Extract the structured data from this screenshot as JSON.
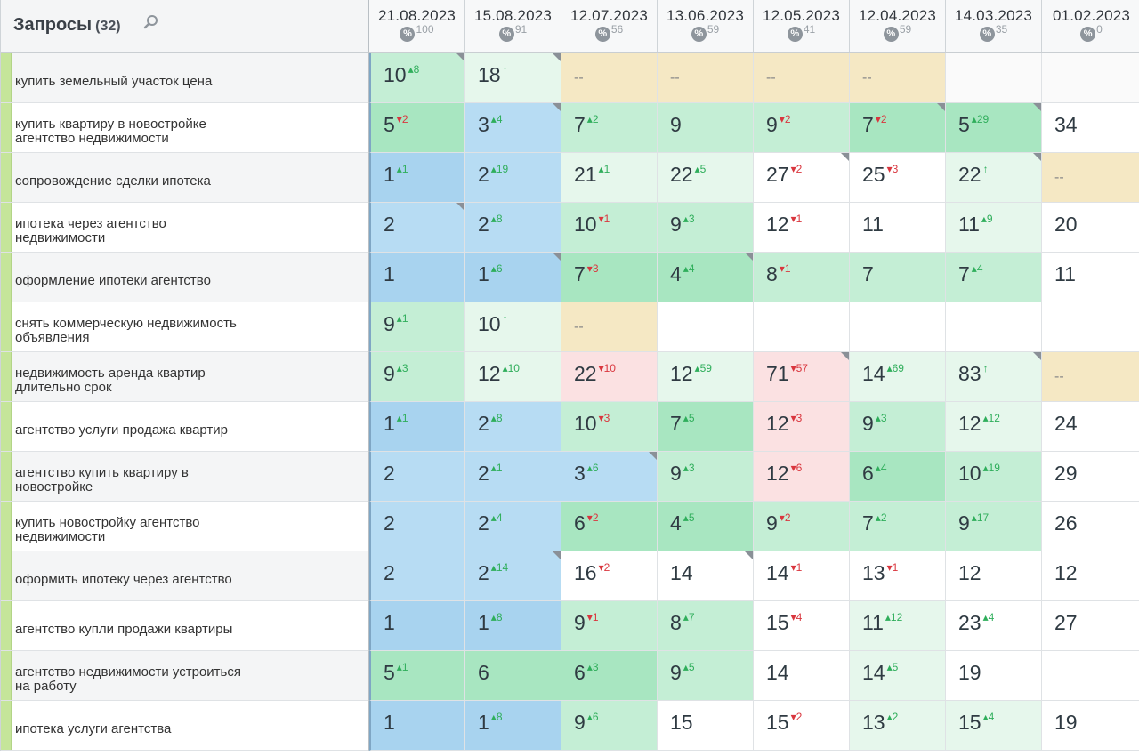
{
  "header": {
    "title": "Запросы",
    "count": "(32)",
    "columns": [
      {
        "date": "21.08.2023",
        "pct": "100"
      },
      {
        "date": "15.08.2023",
        "pct": "91"
      },
      {
        "date": "12.07.2023",
        "pct": "56"
      },
      {
        "date": "13.06.2023",
        "pct": "59"
      },
      {
        "date": "12.05.2023",
        "pct": "41"
      },
      {
        "date": "12.04.2023",
        "pct": "59"
      },
      {
        "date": "14.03.2023",
        "pct": "35"
      },
      {
        "date": "01.02.2023",
        "pct": "0"
      }
    ],
    "pct_symbol": "%"
  },
  "rows": [
    {
      "query": "купить земельный участок цена",
      "cells": [
        {
          "v": "10",
          "d": "8",
          "dir": "up",
          "c": "cgm",
          "k": true
        },
        {
          "v": "18",
          "d": "↑",
          "dir": "up",
          "c": "cgl",
          "k": true
        },
        {
          "v": "--",
          "c": "cy"
        },
        {
          "v": "--",
          "c": "cy"
        },
        {
          "v": "--",
          "c": "cy"
        },
        {
          "v": "--",
          "c": "cy"
        },
        {
          "v": "",
          "c": "cwg"
        },
        {
          "v": "",
          "c": "cwg"
        }
      ]
    },
    {
      "query": "купить квартиру в новостройке агентство недвижимости",
      "cells": [
        {
          "v": "5",
          "d": "2",
          "dir": "down",
          "c": "cg"
        },
        {
          "v": "3",
          "d": "4",
          "dir": "up",
          "c": "cb",
          "k": true
        },
        {
          "v": "7",
          "d": "2",
          "dir": "up",
          "c": "cgm"
        },
        {
          "v": "9",
          "c": "cgm"
        },
        {
          "v": "9",
          "d": "2",
          "dir": "down",
          "c": "cgm"
        },
        {
          "v": "7",
          "d": "2",
          "dir": "down",
          "c": "cg",
          "k": true
        },
        {
          "v": "5",
          "d": "29",
          "dir": "up",
          "c": "cg",
          "k": true
        },
        {
          "v": "34",
          "c": "cw"
        }
      ]
    },
    {
      "query": "сопровождение сделки ипотека",
      "cells": [
        {
          "v": "1",
          "d": "1",
          "dir": "up",
          "c": "cbd"
        },
        {
          "v": "2",
          "d": "19",
          "dir": "up",
          "c": "cb"
        },
        {
          "v": "21",
          "d": "1",
          "dir": "up",
          "c": "cgl"
        },
        {
          "v": "22",
          "d": "5",
          "dir": "up",
          "c": "cgl"
        },
        {
          "v": "27",
          "d": "2",
          "dir": "down",
          "c": "cw",
          "k": true
        },
        {
          "v": "25",
          "d": "3",
          "dir": "down",
          "c": "cw"
        },
        {
          "v": "22",
          "d": "↑",
          "dir": "up",
          "c": "cgl",
          "k": true
        },
        {
          "v": "--",
          "c": "cy"
        }
      ]
    },
    {
      "query": "ипотека через агентство недвижимости",
      "cells": [
        {
          "v": "2",
          "c": "cb",
          "k": true
        },
        {
          "v": "2",
          "d": "8",
          "dir": "up",
          "c": "cb"
        },
        {
          "v": "10",
          "d": "1",
          "dir": "down",
          "c": "cgm"
        },
        {
          "v": "9",
          "d": "3",
          "dir": "up",
          "c": "cgm"
        },
        {
          "v": "12",
          "d": "1",
          "dir": "down",
          "c": "cw"
        },
        {
          "v": "11",
          "c": "cw"
        },
        {
          "v": "11",
          "d": "9",
          "dir": "up",
          "c": "cgl"
        },
        {
          "v": "20",
          "c": "cw"
        }
      ]
    },
    {
      "query": "оформление ипотеки агентство",
      "cells": [
        {
          "v": "1",
          "c": "cbd"
        },
        {
          "v": "1",
          "d": "6",
          "dir": "up",
          "c": "cbd",
          "k": true
        },
        {
          "v": "7",
          "d": "3",
          "dir": "down",
          "c": "cg"
        },
        {
          "v": "4",
          "d": "4",
          "dir": "up",
          "c": "cg",
          "k": true
        },
        {
          "v": "8",
          "d": "1",
          "dir": "down",
          "c": "cgm"
        },
        {
          "v": "7",
          "c": "cgm"
        },
        {
          "v": "7",
          "d": "4",
          "dir": "up",
          "c": "cgm"
        },
        {
          "v": "11",
          "c": "cw"
        }
      ]
    },
    {
      "query": "снять коммерческую недвижимость объявления",
      "cells": [
        {
          "v": "9",
          "d": "1",
          "dir": "up",
          "c": "cgm"
        },
        {
          "v": "10",
          "d": "↑",
          "dir": "up",
          "c": "cgl"
        },
        {
          "v": "--",
          "c": "cy"
        },
        {
          "v": "",
          "c": "cw"
        },
        {
          "v": "",
          "c": "cw"
        },
        {
          "v": "",
          "c": "cw"
        },
        {
          "v": "",
          "c": "cw"
        },
        {
          "v": "",
          "c": "cw"
        }
      ]
    },
    {
      "query": "недвижимость аренда квартир длительно срок",
      "cells": [
        {
          "v": "9",
          "d": "3",
          "dir": "up",
          "c": "cgm"
        },
        {
          "v": "12",
          "d": "10",
          "dir": "up",
          "c": "cgl"
        },
        {
          "v": "22",
          "d": "10",
          "dir": "down",
          "c": "cr"
        },
        {
          "v": "12",
          "d": "59",
          "dir": "up",
          "c": "cgl"
        },
        {
          "v": "71",
          "d": "57",
          "dir": "down",
          "c": "cr",
          "k": true
        },
        {
          "v": "14",
          "d": "69",
          "dir": "up",
          "c": "cgl"
        },
        {
          "v": "83",
          "d": "↑",
          "dir": "up",
          "c": "cgl",
          "k": true
        },
        {
          "v": "--",
          "c": "cy"
        }
      ]
    },
    {
      "query": "агентство услуги продажа квартир",
      "cells": [
        {
          "v": "1",
          "d": "1",
          "dir": "up",
          "c": "cbd"
        },
        {
          "v": "2",
          "d": "8",
          "dir": "up",
          "c": "cb"
        },
        {
          "v": "10",
          "d": "3",
          "dir": "down",
          "c": "cgm"
        },
        {
          "v": "7",
          "d": "5",
          "dir": "up",
          "c": "cg"
        },
        {
          "v": "12",
          "d": "3",
          "dir": "down",
          "c": "cr"
        },
        {
          "v": "9",
          "d": "3",
          "dir": "up",
          "c": "cgm"
        },
        {
          "v": "12",
          "d": "12",
          "dir": "up",
          "c": "cgl"
        },
        {
          "v": "24",
          "c": "cw"
        }
      ]
    },
    {
      "query": "агентство купить квартиру в новостройке",
      "cells": [
        {
          "v": "2",
          "c": "cb"
        },
        {
          "v": "2",
          "d": "1",
          "dir": "up",
          "c": "cb"
        },
        {
          "v": "3",
          "d": "6",
          "dir": "up",
          "c": "cb",
          "k": true
        },
        {
          "v": "9",
          "d": "3",
          "dir": "up",
          "c": "cgm"
        },
        {
          "v": "12",
          "d": "6",
          "dir": "down",
          "c": "cr"
        },
        {
          "v": "6",
          "d": "4",
          "dir": "up",
          "c": "cg"
        },
        {
          "v": "10",
          "d": "19",
          "dir": "up",
          "c": "cgm"
        },
        {
          "v": "29",
          "c": "cw"
        }
      ]
    },
    {
      "query": "купить новостройку агентство недвижимости",
      "cells": [
        {
          "v": "2",
          "c": "cb"
        },
        {
          "v": "2",
          "d": "4",
          "dir": "up",
          "c": "cb"
        },
        {
          "v": "6",
          "d": "2",
          "dir": "down",
          "c": "cg"
        },
        {
          "v": "4",
          "d": "5",
          "dir": "up",
          "c": "cg"
        },
        {
          "v": "9",
          "d": "2",
          "dir": "down",
          "c": "cgm"
        },
        {
          "v": "7",
          "d": "2",
          "dir": "up",
          "c": "cgm"
        },
        {
          "v": "9",
          "d": "17",
          "dir": "up",
          "c": "cgm"
        },
        {
          "v": "26",
          "c": "cw"
        }
      ]
    },
    {
      "query": "оформить ипотеку через агентство",
      "cells": [
        {
          "v": "2",
          "c": "cb"
        },
        {
          "v": "2",
          "d": "14",
          "dir": "up",
          "c": "cb",
          "k": true
        },
        {
          "v": "16",
          "d": "2",
          "dir": "down",
          "c": "cw"
        },
        {
          "v": "14",
          "c": "cw",
          "k": true
        },
        {
          "v": "14",
          "d": "1",
          "dir": "down",
          "c": "cw"
        },
        {
          "v": "13",
          "d": "1",
          "dir": "down",
          "c": "cw"
        },
        {
          "v": "12",
          "c": "cw"
        },
        {
          "v": "12",
          "c": "cw"
        }
      ]
    },
    {
      "query": "агентство купли продажи квартиры",
      "cells": [
        {
          "v": "1",
          "c": "cbd"
        },
        {
          "v": "1",
          "d": "8",
          "dir": "up",
          "c": "cbd"
        },
        {
          "v": "9",
          "d": "1",
          "dir": "down",
          "c": "cgm"
        },
        {
          "v": "8",
          "d": "7",
          "dir": "up",
          "c": "cgm"
        },
        {
          "v": "15",
          "d": "4",
          "dir": "down",
          "c": "cw"
        },
        {
          "v": "11",
          "d": "12",
          "dir": "up",
          "c": "cgl"
        },
        {
          "v": "23",
          "d": "4",
          "dir": "up",
          "c": "cw"
        },
        {
          "v": "27",
          "c": "cw"
        }
      ]
    },
    {
      "query": "агентство недвижимости устроиться на работу",
      "cells": [
        {
          "v": "5",
          "d": "1",
          "dir": "up",
          "c": "cg"
        },
        {
          "v": "6",
          "c": "cg"
        },
        {
          "v": "6",
          "d": "3",
          "dir": "up",
          "c": "cg"
        },
        {
          "v": "9",
          "d": "5",
          "dir": "up",
          "c": "cgm"
        },
        {
          "v": "14",
          "c": "cw"
        },
        {
          "v": "14",
          "d": "5",
          "dir": "up",
          "c": "cgl"
        },
        {
          "v": "19",
          "c": "cw"
        },
        {
          "v": "",
          "c": "cw"
        }
      ]
    },
    {
      "query": "ипотека услуги агентства",
      "cells": [
        {
          "v": "1",
          "c": "cbd"
        },
        {
          "v": "1",
          "d": "8",
          "dir": "up",
          "c": "cbd"
        },
        {
          "v": "9",
          "d": "6",
          "dir": "up",
          "c": "cgm"
        },
        {
          "v": "15",
          "c": "cw"
        },
        {
          "v": "15",
          "d": "2",
          "dir": "down",
          "c": "cw"
        },
        {
          "v": "13",
          "d": "2",
          "dir": "up",
          "c": "cgl"
        },
        {
          "v": "15",
          "d": "4",
          "dir": "up",
          "c": "cgl"
        },
        {
          "v": "19",
          "c": "cw"
        }
      ]
    }
  ]
}
